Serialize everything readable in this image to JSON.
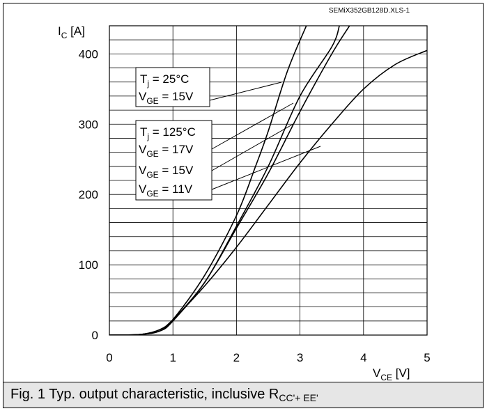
{
  "chart_data": {
    "type": "line",
    "source_tag": "SEMiX352GB128D.XLS-1",
    "ylabel_main": "I",
    "ylabel_sub": "C",
    "ylabel_unit": " [A]",
    "xlabel_main": "V",
    "xlabel_sub": "CE",
    "xlabel_unit": " [V]",
    "xlim": [
      0,
      5
    ],
    "ylim": [
      0,
      440
    ],
    "xticks": [
      "0",
      "1",
      "2",
      "3",
      "4",
      "5"
    ],
    "yticks": [
      "0",
      "100",
      "200",
      "300",
      "400"
    ],
    "grid": true,
    "series": [
      {
        "points": [
          [
            0,
            0
          ],
          [
            0.5,
            1
          ],
          [
            0.8,
            8
          ],
          [
            1.0,
            22
          ],
          [
            1.5,
            85
          ],
          [
            2.0,
            170
          ],
          [
            2.3,
            240
          ],
          [
            2.5,
            290
          ],
          [
            2.8,
            375
          ],
          [
            3.1,
            440
          ]
        ]
      },
      {
        "points": [
          [
            0,
            0
          ],
          [
            0.5,
            1
          ],
          [
            0.8,
            6
          ],
          [
            1.0,
            20
          ],
          [
            1.5,
            75
          ],
          [
            2.0,
            155
          ],
          [
            2.5,
            240
          ],
          [
            3.0,
            340
          ],
          [
            3.5,
            410
          ],
          [
            3.62,
            440
          ]
        ]
      },
      {
        "points": [
          [
            0,
            0
          ],
          [
            0.5,
            1
          ],
          [
            0.8,
            6
          ],
          [
            1.0,
            21
          ],
          [
            1.5,
            75
          ],
          [
            2.0,
            152
          ],
          [
            2.5,
            230
          ],
          [
            3.0,
            318
          ],
          [
            3.5,
            400
          ],
          [
            3.78,
            440
          ]
        ]
      },
      {
        "points": [
          [
            0,
            0
          ],
          [
            0.5,
            1
          ],
          [
            0.8,
            8
          ],
          [
            1.0,
            22
          ],
          [
            1.5,
            70
          ],
          [
            2.0,
            125
          ],
          [
            2.5,
            185
          ],
          [
            3.0,
            245
          ],
          [
            3.5,
            300
          ],
          [
            4.0,
            350
          ],
          [
            4.5,
            385
          ],
          [
            5.0,
            405
          ]
        ]
      }
    ],
    "annotation_box_1": {
      "line1_main": "T",
      "line1_sub": "j",
      "line1_rest": " = 25°C",
      "line2_main": "V",
      "line2_sub": "GE",
      "line2_rest": " = 15V"
    },
    "annotation_box_2": {
      "line1_main": "T",
      "line1_sub": "j",
      "line1_rest": " = 125°C",
      "line2_main": "V",
      "line2_sub": "GE",
      "line2_rest": " = 17V",
      "line3_main": "V",
      "line3_sub": "GE",
      "line3_rest": " = 15V",
      "line4_main": "V",
      "line4_sub": "GE",
      "line4_rest": " = 11V"
    }
  },
  "caption": {
    "text": "Fig. 1 Typ. output characteristic, inclusive R",
    "sub": "CC'+ EE'"
  }
}
